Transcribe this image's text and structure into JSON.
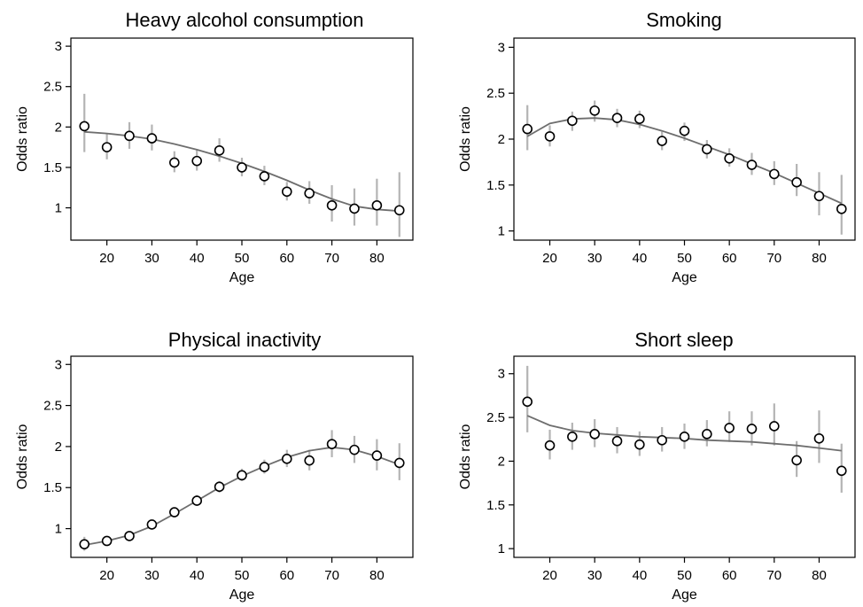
{
  "chart_data": [
    {
      "type": "scatter",
      "title": "Heavy alcohol consumption",
      "xlabel": "Age",
      "ylabel": "Odds ratio",
      "xlim": [
        12,
        88
      ],
      "ylim": [
        0.6,
        3.1
      ],
      "xticks": [
        20,
        30,
        40,
        50,
        60,
        70,
        80
      ],
      "yticks": [
        1,
        1.5,
        2,
        2.5,
        3
      ],
      "ytick_labels": [
        "1",
        "1.5",
        "2",
        "2.5",
        "3"
      ],
      "grid": false,
      "x": [
        15,
        20,
        25,
        30,
        35,
        40,
        45,
        50,
        55,
        60,
        65,
        70,
        75,
        80,
        85
      ],
      "points": [
        2.01,
        1.75,
        1.89,
        1.86,
        1.56,
        1.58,
        1.71,
        1.5,
        1.39,
        1.2,
        1.18,
        1.03,
        0.99,
        1.03,
        0.97
      ],
      "ci_low": [
        1.69,
        1.6,
        1.73,
        1.71,
        1.44,
        1.46,
        1.57,
        1.39,
        1.28,
        1.09,
        1.05,
        0.83,
        0.78,
        0.78,
        0.64
      ],
      "ci_high": [
        2.41,
        1.92,
        2.06,
        2.03,
        1.7,
        1.72,
        1.86,
        1.62,
        1.52,
        1.32,
        1.33,
        1.28,
        1.24,
        1.36,
        1.44
      ],
      "fit": [
        1.94,
        1.92,
        1.89,
        1.85,
        1.79,
        1.72,
        1.64,
        1.55,
        1.45,
        1.34,
        1.22,
        1.11,
        1.02,
        0.98,
        0.96
      ]
    },
    {
      "type": "scatter",
      "title": "Smoking",
      "xlabel": "Age",
      "ylabel": "Odds ratio",
      "xlim": [
        12,
        88
      ],
      "ylim": [
        0.9,
        3.1
      ],
      "xticks": [
        20,
        30,
        40,
        50,
        60,
        70,
        80
      ],
      "yticks": [
        1,
        1.5,
        2,
        2.5,
        3
      ],
      "ytick_labels": [
        "1",
        "1.5",
        "2",
        "2.5",
        "3"
      ],
      "grid": false,
      "x": [
        15,
        20,
        25,
        30,
        35,
        40,
        45,
        50,
        55,
        60,
        65,
        70,
        75,
        80,
        85
      ],
      "points": [
        2.11,
        2.03,
        2.2,
        2.31,
        2.23,
        2.22,
        1.98,
        2.09,
        1.89,
        1.79,
        1.72,
        1.62,
        1.53,
        1.38,
        1.24
      ],
      "ci_low": [
        1.88,
        1.92,
        2.09,
        2.19,
        2.13,
        2.12,
        1.88,
        1.98,
        1.79,
        1.7,
        1.61,
        1.5,
        1.38,
        1.17,
        0.96
      ],
      "ci_high": [
        2.37,
        2.15,
        2.3,
        2.42,
        2.33,
        2.31,
        2.08,
        2.18,
        1.99,
        1.9,
        1.85,
        1.76,
        1.73,
        1.64,
        1.61
      ],
      "fit": [
        2.03,
        2.17,
        2.22,
        2.23,
        2.21,
        2.16,
        2.09,
        2.01,
        1.92,
        1.83,
        1.73,
        1.63,
        1.52,
        1.41,
        1.3
      ]
    },
    {
      "type": "scatter",
      "title": "Physical inactivity",
      "xlabel": "Age",
      "ylabel": "Odds ratio",
      "xlim": [
        12,
        88
      ],
      "ylim": [
        0.65,
        3.1
      ],
      "xticks": [
        20,
        30,
        40,
        50,
        60,
        70,
        80
      ],
      "yticks": [
        1,
        1.5,
        2,
        2.5,
        3
      ],
      "ytick_labels": [
        "1",
        "1.5",
        "2",
        "2.5",
        "3"
      ],
      "grid": false,
      "x": [
        15,
        20,
        25,
        30,
        35,
        40,
        45,
        50,
        55,
        60,
        65,
        70,
        75,
        80,
        85
      ],
      "points": [
        0.81,
        0.85,
        0.91,
        1.05,
        1.2,
        1.34,
        1.51,
        1.65,
        1.75,
        1.85,
        1.83,
        2.03,
        1.96,
        1.89,
        1.8
      ],
      "ci_low": [
        0.73,
        0.8,
        0.86,
        1.0,
        1.14,
        1.28,
        1.44,
        1.58,
        1.67,
        1.75,
        1.71,
        1.87,
        1.8,
        1.71,
        1.59
      ],
      "ci_high": [
        0.9,
        0.91,
        0.97,
        1.11,
        1.26,
        1.41,
        1.58,
        1.73,
        1.84,
        1.96,
        1.96,
        2.2,
        2.13,
        2.09,
        2.04
      ],
      "fit": [
        0.8,
        0.85,
        0.92,
        1.03,
        1.18,
        1.34,
        1.5,
        1.64,
        1.76,
        1.87,
        1.95,
        1.99,
        1.96,
        1.88,
        1.78
      ]
    },
    {
      "type": "scatter",
      "title": "Short sleep",
      "xlabel": "Age",
      "ylabel": "Odds ratio",
      "xlim": [
        12,
        88
      ],
      "ylim": [
        0.9,
        3.2
      ],
      "xticks": [
        20,
        30,
        40,
        50,
        60,
        70,
        80
      ],
      "yticks": [
        1,
        1.5,
        2,
        2.5,
        3
      ],
      "ytick_labels": [
        "1",
        "1.5",
        "2",
        "2.5",
        "3"
      ],
      "grid": false,
      "x": [
        15,
        20,
        25,
        30,
        35,
        40,
        45,
        50,
        55,
        60,
        65,
        70,
        75,
        80,
        85
      ],
      "points": [
        2.68,
        2.18,
        2.28,
        2.31,
        2.23,
        2.19,
        2.24,
        2.28,
        2.31,
        2.38,
        2.37,
        2.4,
        2.01,
        2.26,
        1.89
      ],
      "ci_low": [
        2.33,
        2.02,
        2.13,
        2.16,
        2.09,
        2.06,
        2.11,
        2.14,
        2.17,
        2.22,
        2.18,
        2.18,
        1.82,
        1.98,
        1.64
      ],
      "ci_high": [
        3.09,
        2.36,
        2.44,
        2.48,
        2.39,
        2.34,
        2.39,
        2.43,
        2.47,
        2.57,
        2.57,
        2.66,
        2.23,
        2.58,
        2.2
      ],
      "fit": [
        2.52,
        2.41,
        2.35,
        2.32,
        2.3,
        2.28,
        2.27,
        2.26,
        2.24,
        2.23,
        2.22,
        2.2,
        2.18,
        2.15,
        2.12
      ]
    }
  ]
}
